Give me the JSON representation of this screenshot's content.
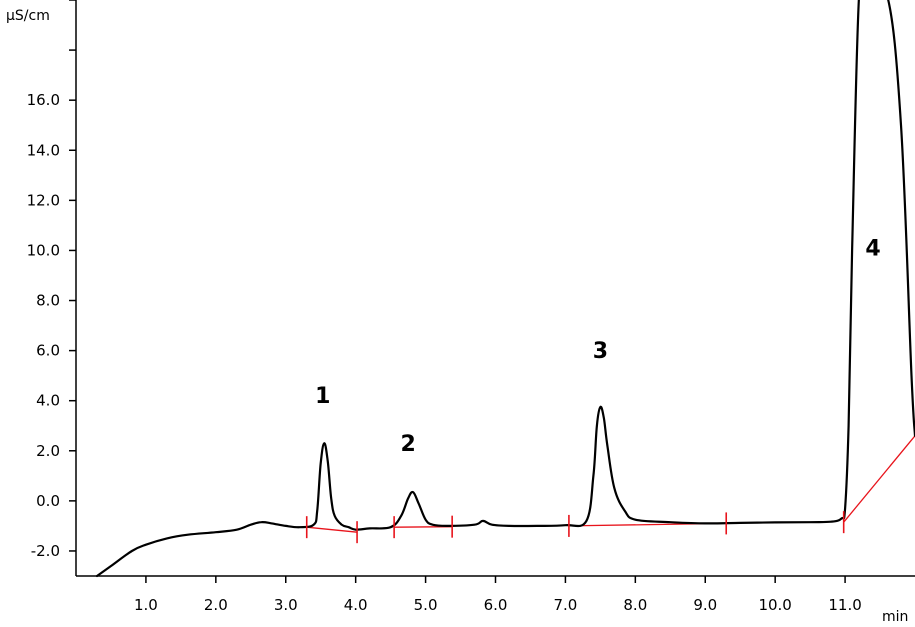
{
  "chart_data": {
    "type": "line",
    "title": "",
    "xlabel": "min",
    "ylabel": "µS/cm",
    "xlim": [
      0,
      12.0
    ],
    "ylim": [
      -3.0,
      20.0
    ],
    "x_ticks": [
      "1.0",
      "2.0",
      "3.0",
      "4.0",
      "5.0",
      "6.0",
      "7.0",
      "8.0",
      "9.0",
      "10.0",
      "11.0"
    ],
    "x_tick_values": [
      1,
      2,
      3,
      4,
      5,
      6,
      7,
      8,
      9,
      10,
      11
    ],
    "y_ticks": [
      "-2.0",
      "0.0",
      "2.0",
      "4.0",
      "6.0",
      "8.0",
      "10.0",
      "12.0",
      "14.0",
      "16.0"
    ],
    "y_tick_values": [
      -2,
      0,
      2,
      4,
      6,
      8,
      10,
      12,
      14,
      16
    ],
    "grid": false,
    "series": [
      {
        "color": "#000000",
        "x": [
          0.3,
          0.5,
          0.8,
          1.0,
          1.3,
          1.6,
          2.0,
          2.3,
          2.5,
          2.65,
          2.8,
          3.0,
          3.2,
          3.4,
          3.45,
          3.5,
          3.55,
          3.6,
          3.65,
          3.7,
          3.8,
          3.9,
          4.0,
          4.2,
          4.5,
          4.65,
          4.75,
          4.82,
          4.9,
          5.0,
          5.1,
          5.3,
          5.7,
          5.82,
          5.95,
          6.2,
          6.6,
          7.0,
          7.3,
          7.4,
          7.45,
          7.5,
          7.55,
          7.6,
          7.7,
          7.85,
          8.0,
          8.5,
          9.0,
          9.5,
          10.0,
          10.5,
          10.8,
          10.95,
          11.0,
          11.05,
          11.1,
          11.2,
          11.3,
          11.6,
          11.8,
          11.95,
          12.0
        ],
        "y": [
          -3.0,
          -2.6,
          -2.0,
          -1.75,
          -1.5,
          -1.35,
          -1.25,
          -1.15,
          -0.95,
          -0.85,
          -0.9,
          -1.0,
          -1.05,
          -0.95,
          -0.4,
          1.5,
          2.3,
          1.6,
          0.1,
          -0.6,
          -0.95,
          -1.05,
          -1.15,
          -1.1,
          -1.05,
          -0.6,
          0.1,
          0.35,
          -0.1,
          -0.75,
          -0.95,
          -1.0,
          -0.95,
          -0.8,
          -0.95,
          -1.0,
          -1.0,
          -0.97,
          -0.8,
          1.0,
          3.0,
          3.75,
          3.3,
          2.2,
          0.5,
          -0.4,
          -0.75,
          -0.85,
          -0.9,
          -0.88,
          -0.86,
          -0.85,
          -0.83,
          -0.7,
          -0.3,
          3.0,
          10.0,
          21.0,
          22.0,
          21.0,
          15.0,
          5.0,
          2.6
        ]
      }
    ],
    "baselines": [
      {
        "x": [
          3.3,
          4.02
        ],
        "y": [
          -1.05,
          -1.25
        ]
      },
      {
        "x": [
          4.55,
          5.38
        ],
        "y": [
          -1.05,
          -1.03
        ]
      },
      {
        "x": [
          7.05,
          9.3
        ],
        "y": [
          -1.0,
          -0.9
        ]
      },
      {
        "x": [
          10.98,
          12.0
        ],
        "y": [
          -0.85,
          2.6
        ]
      }
    ],
    "integration_marks": [
      {
        "x": 3.3,
        "y": -1.05
      },
      {
        "x": 4.02,
        "y": -1.25
      },
      {
        "x": 4.55,
        "y": -1.05
      },
      {
        "x": 5.38,
        "y": -1.03
      },
      {
        "x": 7.05,
        "y": -1.0
      },
      {
        "x": 9.3,
        "y": -0.9
      },
      {
        "x": 10.98,
        "y": -0.85
      }
    ],
    "annotations": [
      {
        "text": "1",
        "x": 3.53,
        "y": 3.9
      },
      {
        "text": "2",
        "x": 4.75,
        "y": 2.0
      },
      {
        "text": "3",
        "x": 7.5,
        "y": 5.7
      },
      {
        "text": "4",
        "x": 11.4,
        "y": 9.8
      }
    ]
  }
}
